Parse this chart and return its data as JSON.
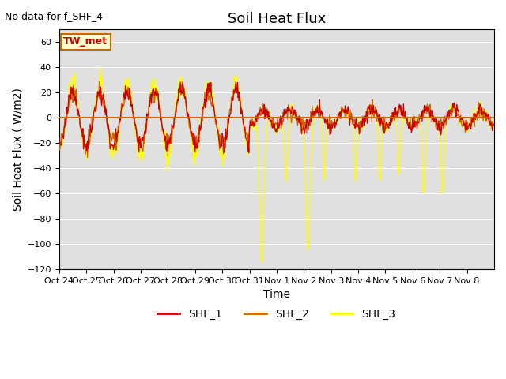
{
  "title": "Soil Heat Flux",
  "xlabel": "Time",
  "ylabel": "Soil Heat Flux ( W/m2)",
  "top_left_text": "No data for f_SHF_4",
  "annotation_text": "TW_met",
  "ylim": [
    -120,
    70
  ],
  "yticks": [
    -120,
    -100,
    -80,
    -60,
    -40,
    -20,
    0,
    20,
    40,
    60
  ],
  "xtick_labels": [
    "Oct 24",
    "Oct 25",
    "Oct 26",
    "Oct 27",
    "Oct 28",
    "Oct 29",
    "Oct 30",
    "Oct 31",
    "Nov 1",
    "Nov 2",
    "Nov 3",
    "Nov 4",
    "Nov 5",
    "Nov 6",
    "Nov 7",
    "Nov 8"
  ],
  "n_days": 16,
  "colors": {
    "SHF_1": "#cc0000",
    "SHF_2": "#cc6600",
    "SHF_3": "#ffff00",
    "hline": "#cc6600",
    "background": "#e0e0e0"
  },
  "title_fontsize": 13,
  "label_fontsize": 10,
  "tick_fontsize": 8
}
